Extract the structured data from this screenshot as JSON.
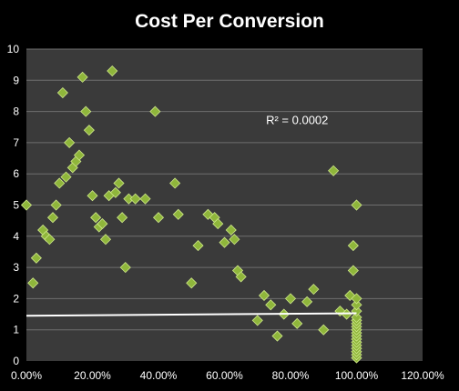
{
  "chart_data": {
    "type": "scatter",
    "title": "Cost Per Conversion",
    "xlabel": "",
    "ylabel": "",
    "xlim": [
      0,
      1.2
    ],
    "ylim": [
      0,
      10
    ],
    "x_ticks": [
      0,
      0.2,
      0.4,
      0.6,
      0.8,
      1.0,
      1.2
    ],
    "x_tick_labels": [
      "0.00%",
      "20.00%",
      "40.00%",
      "60.00%",
      "80.00%",
      "100.00%",
      "120.00%"
    ],
    "y_ticks": [
      0,
      1,
      2,
      3,
      4,
      5,
      6,
      7,
      8,
      9,
      10
    ],
    "y_tick_labels": [
      "0",
      "1",
      "2",
      "3",
      "4",
      "5",
      "6",
      "7",
      "8",
      "9",
      "10"
    ],
    "grid": true,
    "legend": "none",
    "annotation": "R² = 0.0002",
    "trendline": {
      "x": [
        0,
        1.0
      ],
      "y": [
        1.45,
        1.53
      ],
      "color": "#ffffff"
    },
    "colors": {
      "background": "#000000",
      "plot_area": "#3a3a3a",
      "grid": "#6e6e6e",
      "marker": "#8fb63b",
      "marker_edge": "#cfe88a"
    },
    "points": [
      [
        0.0,
        5.0
      ],
      [
        0.02,
        2.5
      ],
      [
        0.03,
        3.3
      ],
      [
        0.05,
        4.2
      ],
      [
        0.06,
        4.0
      ],
      [
        0.07,
        3.9
      ],
      [
        0.08,
        4.6
      ],
      [
        0.09,
        5.0
      ],
      [
        0.1,
        5.7
      ],
      [
        0.11,
        8.6
      ],
      [
        0.12,
        5.9
      ],
      [
        0.13,
        7.0
      ],
      [
        0.14,
        6.2
      ],
      [
        0.15,
        6.4
      ],
      [
        0.16,
        6.6
      ],
      [
        0.17,
        9.1
      ],
      [
        0.18,
        8.0
      ],
      [
        0.19,
        7.4
      ],
      [
        0.2,
        5.3
      ],
      [
        0.21,
        4.6
      ],
      [
        0.22,
        4.3
      ],
      [
        0.23,
        4.4
      ],
      [
        0.24,
        3.9
      ],
      [
        0.25,
        5.3
      ],
      [
        0.26,
        9.3
      ],
      [
        0.27,
        5.4
      ],
      [
        0.28,
        5.7
      ],
      [
        0.29,
        4.6
      ],
      [
        0.3,
        3.0
      ],
      [
        0.31,
        5.2
      ],
      [
        0.33,
        5.2
      ],
      [
        0.36,
        5.2
      ],
      [
        0.39,
        8.0
      ],
      [
        0.4,
        4.6
      ],
      [
        0.45,
        5.7
      ],
      [
        0.46,
        4.7
      ],
      [
        0.5,
        2.5
      ],
      [
        0.52,
        3.7
      ],
      [
        0.55,
        4.7
      ],
      [
        0.57,
        4.6
      ],
      [
        0.58,
        4.4
      ],
      [
        0.6,
        3.8
      ],
      [
        0.62,
        4.2
      ],
      [
        0.63,
        3.9
      ],
      [
        0.64,
        2.9
      ],
      [
        0.65,
        2.7
      ],
      [
        0.7,
        1.3
      ],
      [
        0.72,
        2.1
      ],
      [
        0.74,
        1.8
      ],
      [
        0.76,
        0.8
      ],
      [
        0.78,
        1.5
      ],
      [
        0.8,
        2.0
      ],
      [
        0.82,
        1.2
      ],
      [
        0.85,
        1.9
      ],
      [
        0.87,
        2.3
      ],
      [
        0.9,
        1.0
      ],
      [
        0.93,
        6.1
      ],
      [
        0.95,
        1.6
      ],
      [
        0.97,
        1.5
      ],
      [
        0.98,
        2.1
      ],
      [
        0.99,
        2.9
      ],
      [
        0.99,
        3.7
      ],
      [
        1.0,
        5.0
      ],
      [
        1.0,
        0.1
      ],
      [
        1.0,
        0.2
      ],
      [
        1.0,
        0.3
      ],
      [
        1.0,
        0.4
      ],
      [
        1.0,
        0.5
      ],
      [
        1.0,
        0.6
      ],
      [
        1.0,
        0.7
      ],
      [
        1.0,
        0.8
      ],
      [
        1.0,
        0.9
      ],
      [
        1.0,
        1.0
      ],
      [
        1.0,
        1.1
      ],
      [
        1.0,
        1.2
      ],
      [
        1.0,
        1.3
      ],
      [
        1.0,
        1.4
      ],
      [
        1.0,
        1.6
      ],
      [
        1.0,
        1.8
      ],
      [
        1.0,
        2.0
      ]
    ]
  }
}
